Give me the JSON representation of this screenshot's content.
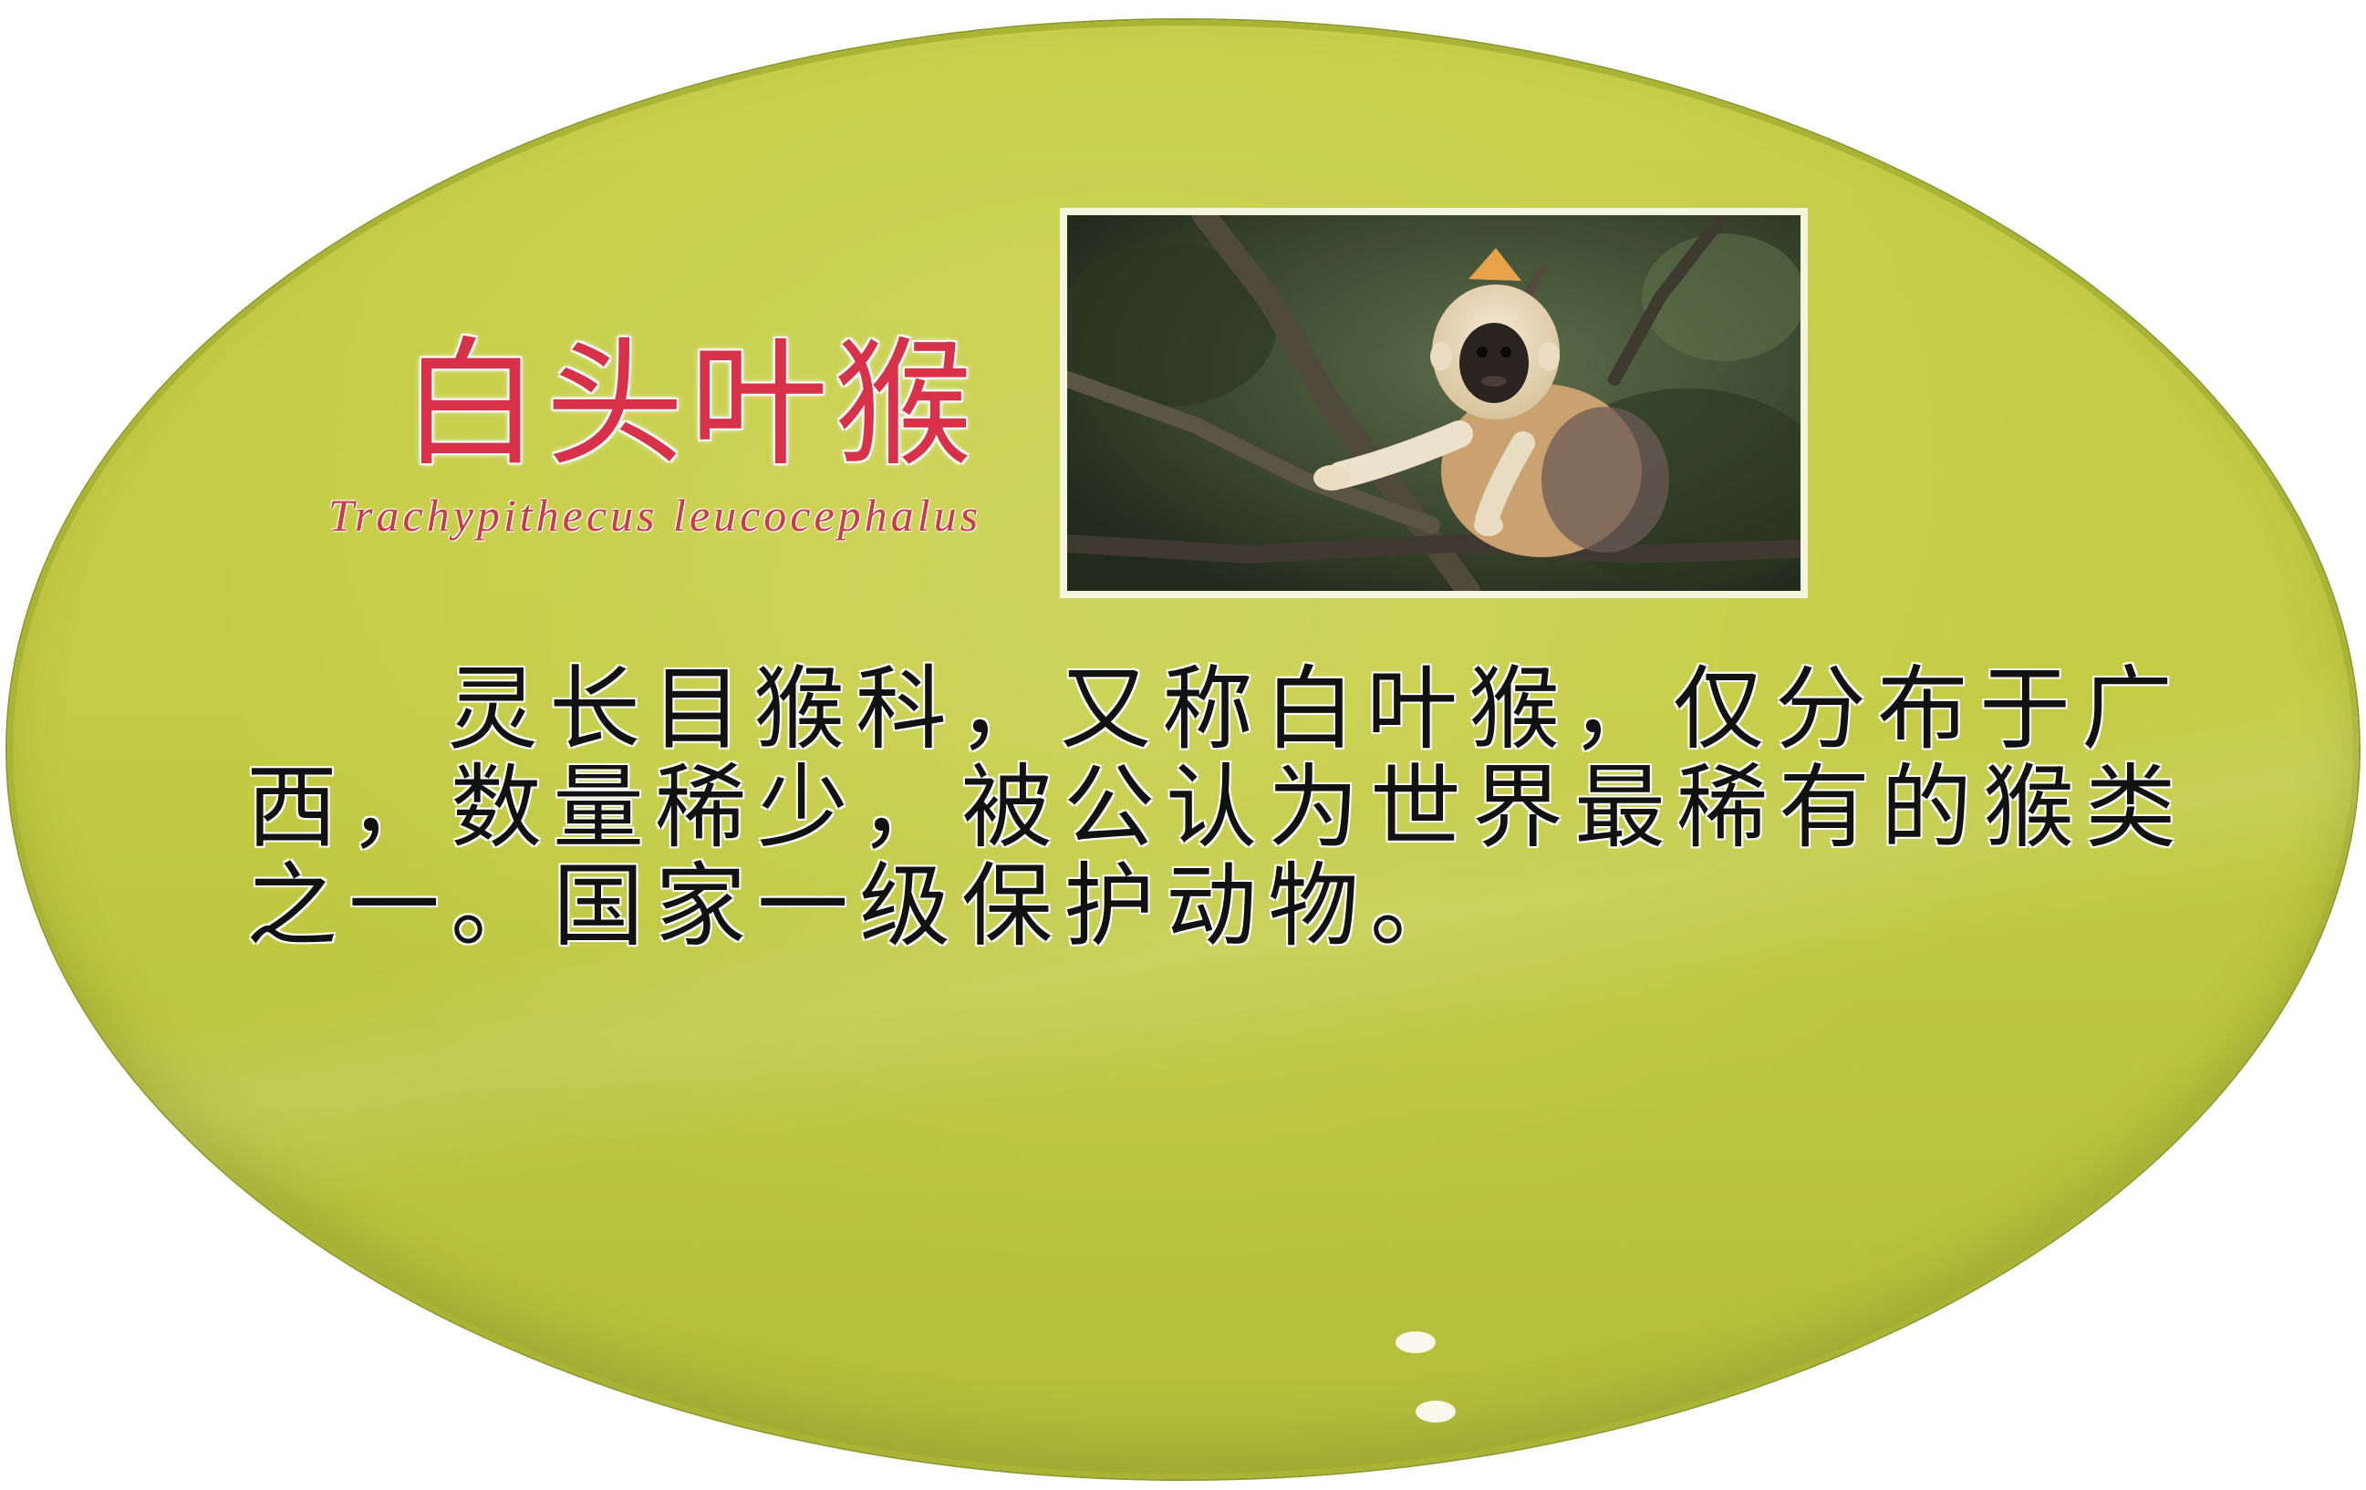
{
  "plaque": {
    "title": "白头叶猴",
    "latin_name": "Trachypithecus leucocephalus",
    "photo_subject": "white-headed-langur-photo",
    "description_lines": [
      "灵长目猴科，又称白叶猴，仅分布于广",
      "西，数量稀少，被公认为世界最稀有的猴类",
      "之一。国家一级保护动物。"
    ]
  },
  "colors": {
    "plaque_green": "#c4cc44",
    "title_red": "#d8324a",
    "latin_red": "#c93a4c",
    "body_text": "#111111"
  }
}
